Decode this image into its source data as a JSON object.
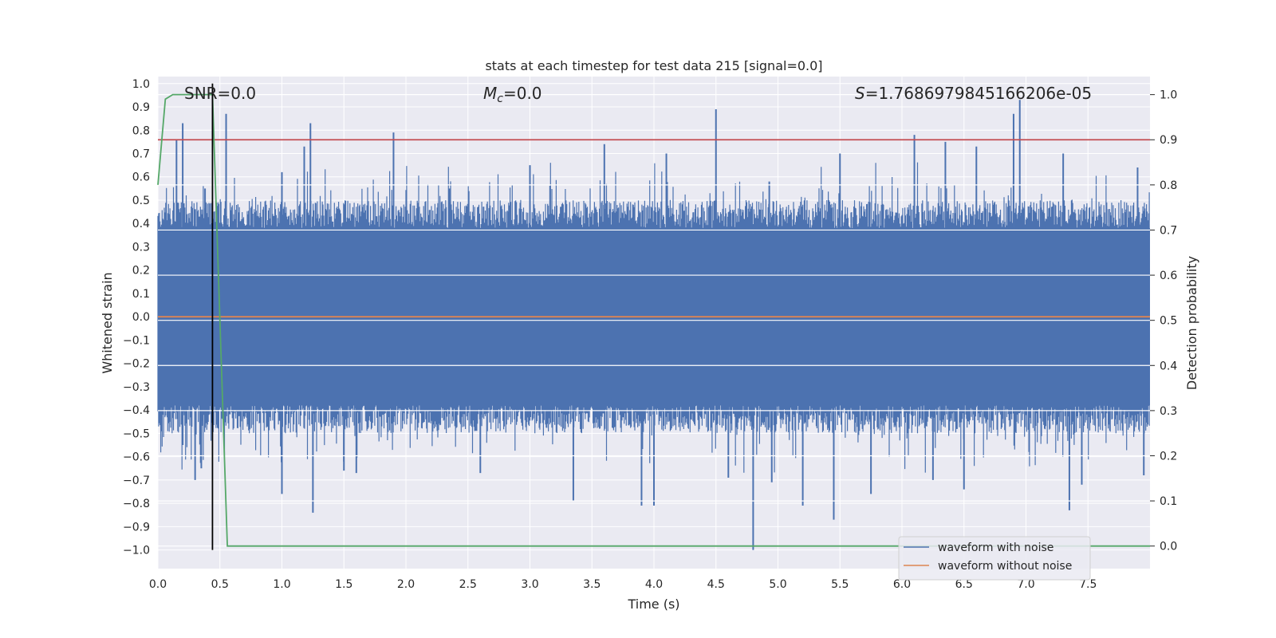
{
  "chart_data": {
    "type": "line",
    "title": "stats at each timestep for test data 215 [signal=0.0]",
    "xlabel": "Time (s)",
    "ylabel_left": "Whitened strain",
    "ylabel_right": "Detection probability",
    "xlim": [
      0.0,
      8.0
    ],
    "ylim_left": [
      -1.08,
      1.03
    ],
    "ylim_right": [
      -0.05,
      1.04
    ],
    "x_ticks": [
      0.0,
      0.5,
      1.0,
      1.5,
      2.0,
      2.5,
      3.0,
      3.5,
      4.0,
      4.5,
      5.0,
      5.5,
      6.0,
      6.5,
      7.0,
      7.5
    ],
    "x_tick_labels": [
      "0.0",
      "0.5",
      "1.0",
      "1.5",
      "2.0",
      "2.5",
      "3.0",
      "3.5",
      "4.0",
      "4.5",
      "5.0",
      "5.5",
      "6.0",
      "6.5",
      "7.0",
      "7.5"
    ],
    "y_left_ticks": [
      -1.0,
      -0.9,
      -0.8,
      -0.7,
      -0.6,
      -0.5,
      -0.4,
      -0.3,
      -0.2,
      -0.1,
      0.0,
      0.1,
      0.2,
      0.3,
      0.4,
      0.5,
      0.6,
      0.7,
      0.8,
      0.9,
      1.0
    ],
    "y_left_tick_labels": [
      "−1.0",
      "−0.9",
      "−0.8",
      "−0.7",
      "−0.6",
      "−0.5",
      "−0.4",
      "−0.3",
      "−0.2",
      "−0.1",
      "0.0",
      "0.1",
      "0.2",
      "0.3",
      "0.4",
      "0.5",
      "0.6",
      "0.7",
      "0.8",
      "0.9",
      "1.0"
    ],
    "y_right_ticks": [
      0.0,
      0.1,
      0.2,
      0.3,
      0.4,
      0.5,
      0.6,
      0.7,
      0.8,
      0.9,
      1.0
    ],
    "y_right_tick_labels": [
      "0.0",
      "0.1",
      "0.2",
      "0.3",
      "0.4",
      "0.5",
      "0.6",
      "0.7",
      "0.8",
      "0.9",
      "1.0"
    ],
    "annotations": {
      "snr": "SNR=0.0",
      "mc_symbol": "M",
      "mc_sub": "c",
      "mc_value": "=0.0",
      "s_symbol": "S",
      "s_value": "=1.7686979845166206e-05"
    },
    "series": [
      {
        "name": "waveform with noise",
        "color": "#4c72b0",
        "axis": "left",
        "description": "noisy whitened strain",
        "band_lower": -0.38,
        "band_upper": 0.38,
        "spikes_up": [
          [
            0.15,
            0.76
          ],
          [
            0.2,
            0.83
          ],
          [
            0.38,
            0.55
          ],
          [
            0.55,
            0.87
          ],
          [
            1.0,
            0.62
          ],
          [
            1.18,
            0.73
          ],
          [
            1.23,
            0.83
          ],
          [
            1.9,
            0.79
          ],
          [
            2.35,
            0.55
          ],
          [
            3.0,
            0.65
          ],
          [
            3.6,
            0.74
          ],
          [
            4.1,
            0.7
          ],
          [
            4.5,
            0.89
          ],
          [
            4.93,
            0.58
          ],
          [
            5.5,
            0.7
          ],
          [
            6.1,
            0.78
          ],
          [
            6.35,
            0.75
          ],
          [
            6.6,
            0.73
          ],
          [
            6.9,
            0.87
          ],
          [
            6.95,
            0.93
          ],
          [
            7.3,
            0.7
          ],
          [
            7.9,
            0.64
          ]
        ],
        "spikes_down": [
          [
            0.2,
            -0.55
          ],
          [
            0.3,
            -0.7
          ],
          [
            0.35,
            -0.65
          ],
          [
            1.0,
            -0.76
          ],
          [
            1.25,
            -0.84
          ],
          [
            1.5,
            -0.66
          ],
          [
            1.6,
            -0.67
          ],
          [
            2.6,
            -0.67
          ],
          [
            3.35,
            -0.79
          ],
          [
            3.9,
            -0.81
          ],
          [
            4.0,
            -0.81
          ],
          [
            4.6,
            -0.69
          ],
          [
            4.8,
            -1.0
          ],
          [
            4.95,
            -0.71
          ],
          [
            5.2,
            -0.81
          ],
          [
            5.45,
            -0.87
          ],
          [
            5.75,
            -0.76
          ],
          [
            6.25,
            -0.7
          ],
          [
            6.5,
            -0.74
          ],
          [
            7.35,
            -0.83
          ],
          [
            7.45,
            -0.72
          ],
          [
            7.95,
            -0.68
          ]
        ]
      },
      {
        "name": "waveform without noise",
        "color": "#dd8452",
        "axis": "left",
        "x": [
          0.0,
          8.0
        ],
        "y": [
          0.0,
          0.0
        ]
      },
      {
        "name": "detection probability",
        "color": "#55a868",
        "axis": "right",
        "x": [
          0.0,
          0.06,
          0.12,
          0.2,
          0.44,
          0.5,
          0.56,
          8.0
        ],
        "y": [
          0.8,
          0.99,
          1.0,
          1.0,
          1.0,
          0.5,
          0.0,
          0.0
        ]
      },
      {
        "name": "threshold",
        "color": "#c44e52",
        "axis": "right",
        "x": [
          0.0,
          8.0
        ],
        "y": [
          0.9,
          0.9
        ]
      },
      {
        "name": "marker",
        "color": "#000000",
        "axis": "left",
        "vline_x": 0.44,
        "y": [
          -1.0,
          1.0
        ]
      }
    ],
    "legend": {
      "placement": "bottom-right",
      "entries": [
        "waveform with noise",
        "waveform without noise"
      ]
    },
    "grid": true,
    "background": "#eaeaf2"
  }
}
